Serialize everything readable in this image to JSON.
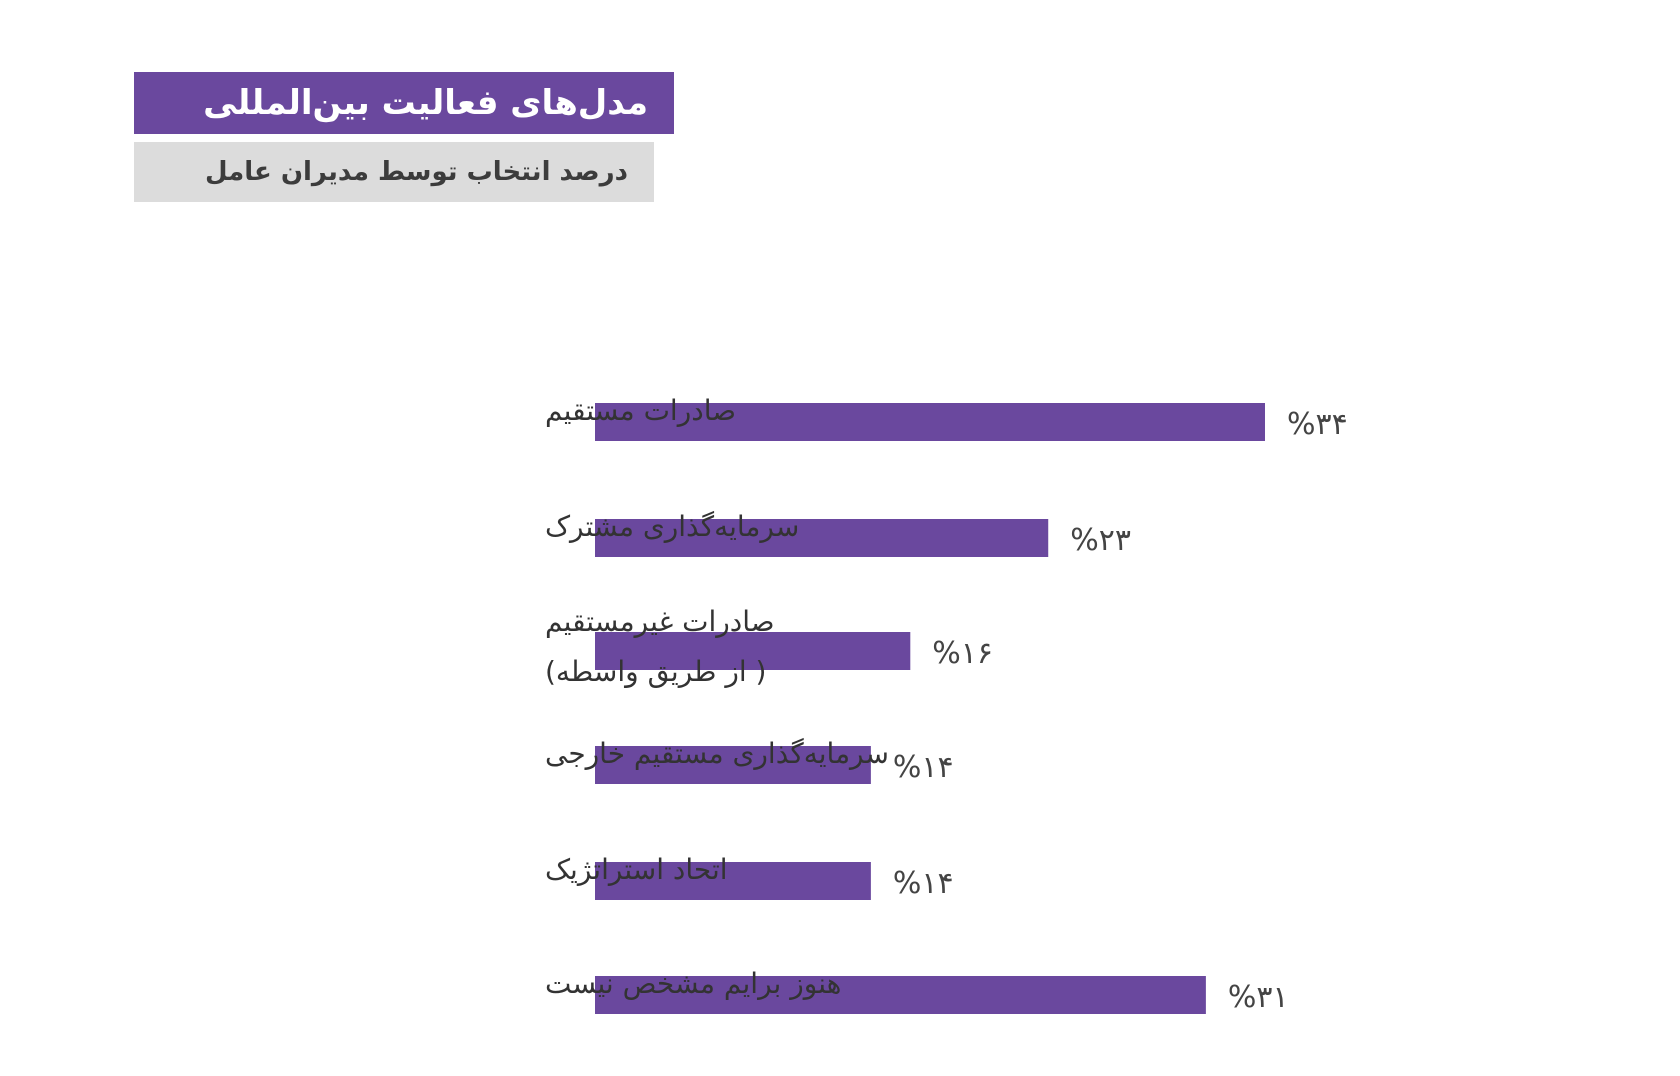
{
  "header": {
    "title": "مدل‌های فعالیت بین‌المللی",
    "subtitle": "درصد انتخاب توسط مدیران عامل"
  },
  "colors": {
    "bar": "#6a489e",
    "title_bg": "#6a489e",
    "subtitle_bg": "#dcdcdc"
  },
  "chart_data": {
    "type": "bar",
    "orientation": "horizontal",
    "categories": [
      [
        "صادرات مستقیم"
      ],
      [
        "سرمایه‌گذاری مشترک"
      ],
      [
        "صادرات غیرمستقیم",
        "( از طریق واسطه)"
      ],
      [
        "سرمایه‌گذاری مستقیم خارجی"
      ],
      [
        "اتحاد استراتژیک"
      ],
      [
        "هنوز برایم مشخص نیست"
      ]
    ],
    "values": [
      34,
      23,
      16,
      14,
      14,
      31
    ],
    "value_labels": [
      "%۳۴",
      "%۲۳",
      "%۱۶",
      "%۱۴",
      "%۱۴",
      "%۳۱"
    ],
    "title": "مدل‌های فعالیت بین‌المللی",
    "subtitle": "درصد انتخاب توسط مدیران عامل",
    "xlabel": "",
    "ylabel": "",
    "xlim": [
      0,
      34
    ],
    "grid": false,
    "legend": "none"
  }
}
